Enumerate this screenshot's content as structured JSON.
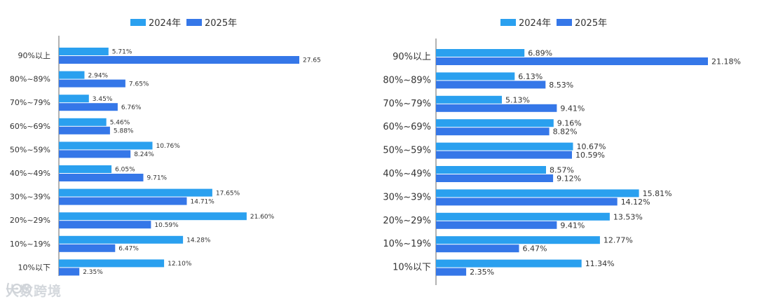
{
  "colors": {
    "s2024": "#2aa0ef",
    "s2025": "#3577e8",
    "axis": "#666666",
    "text": "#333333"
  },
  "watermark": {
    "text": "大数跨境",
    "icon": "logo-icon"
  },
  "chart_data": [
    {
      "type": "bar",
      "orientation": "horizontal",
      "categories": [
        "90%以上",
        "80%~89%",
        "70%~79%",
        "60%~69%",
        "50%~59%",
        "40%~49%",
        "30%~39%",
        "20%~29%",
        "10%~19%",
        "10%以下"
      ],
      "series": [
        {
          "name": "2024年",
          "values": [
            5.71,
            2.94,
            3.45,
            5.46,
            10.76,
            6.05,
            17.65,
            21.6,
            14.28,
            12.1
          ],
          "labels": [
            "5.71%",
            "2.94%",
            "3.45%",
            "5.46%",
            "10.76%",
            "6.05%",
            "17.65%",
            "21.60%",
            "14.28%",
            "12.10%"
          ]
        },
        {
          "name": "2025年",
          "values": [
            27.65,
            7.65,
            6.76,
            5.88,
            8.24,
            9.71,
            14.71,
            10.59,
            6.47,
            2.35
          ],
          "labels": [
            "27.65",
            "7.65%",
            "6.76%",
            "5.88%",
            "8.24%",
            "9.71%",
            "14.71%",
            "10.59%",
            "6.47%",
            "2.35%"
          ]
        }
      ],
      "legend": "top-center",
      "title": "",
      "xlabel": "",
      "ylabel": "",
      "xlim": [
        0,
        27.65
      ]
    },
    {
      "type": "bar",
      "orientation": "horizontal",
      "categories": [
        "90%以上",
        "80%~89%",
        "70%~79%",
        "60%~69%",
        "50%~59%",
        "40%~49%",
        "30%~39%",
        "20%~29%",
        "10%~19%",
        "10%以下"
      ],
      "series": [
        {
          "name": "2024年",
          "values": [
            6.89,
            6.13,
            5.13,
            9.16,
            10.67,
            8.57,
            15.81,
            13.53,
            12.77,
            11.34
          ],
          "labels": [
            "6.89%",
            "6.13%",
            "5.13%",
            "9.16%",
            "10.67%",
            "8.57%",
            "15.81%",
            "13.53%",
            "12.77%",
            "11.34%"
          ]
        },
        {
          "name": "2025年",
          "values": [
            21.18,
            8.53,
            9.41,
            8.82,
            10.59,
            9.12,
            14.12,
            9.41,
            6.47,
            2.35
          ],
          "labels": [
            "21.18%",
            "8.53%",
            "9.41%",
            "8.82%",
            "10.59%",
            "9.12%",
            "14.12%",
            "9.41%",
            "6.47%",
            "2.35%"
          ]
        }
      ],
      "legend": "top-center",
      "title": "",
      "xlabel": "",
      "ylabel": "",
      "xlim": [
        0,
        21.18
      ]
    }
  ]
}
